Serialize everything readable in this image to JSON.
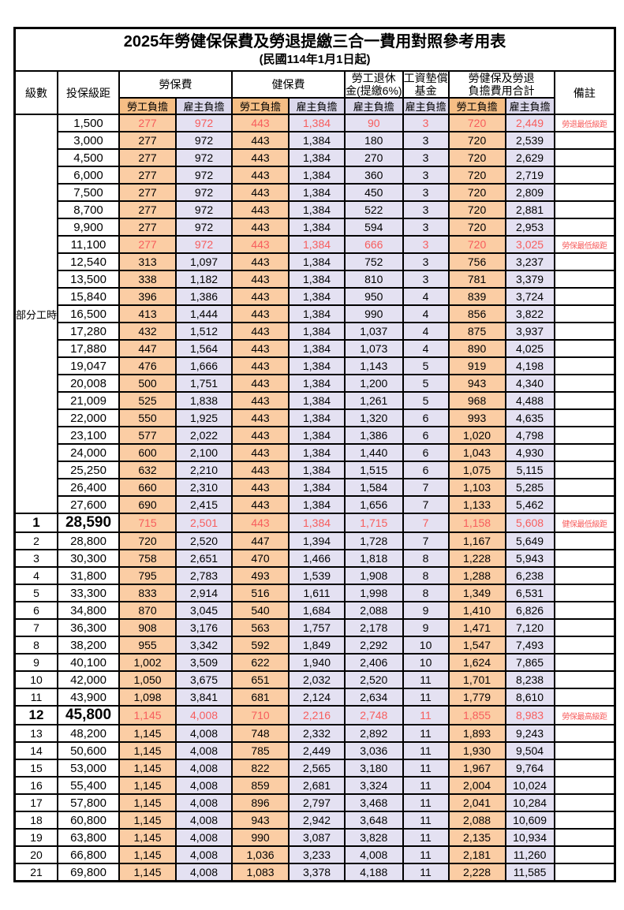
{
  "title": "2025年勞健保保費及勞退提繳三合一費用對照參考用表",
  "subtitle": "(民國114年1月1日起)",
  "header": {
    "level": "級數",
    "bracket": "投保級距",
    "labor_insurance": "勞保費",
    "health_insurance": "健保費",
    "pension_line1": "勞工退休",
    "pension_line2": "金(提繳6%)",
    "wage_fund_line1": "工資墊償",
    "wage_fund_line2": "基金",
    "total_line1": "勞健保及勞退",
    "total_line2": "負擔費用合計",
    "remark": "備註",
    "worker_burden": "勞工負擔",
    "employer_burden": "雇主負擔"
  },
  "part_time_label": "部分工時",
  "colors": {
    "worker_fill": "#FBCDA4",
    "employer_fill": "#E4E1F2",
    "header_worker_fill": "#F6BE85",
    "header_employer_fill": "#DBD8EC",
    "highlight_red": "#F75D5D",
    "border": "#000000"
  },
  "columns": [
    {
      "key": "a",
      "fill": "orange",
      "name": "cell-labor-insurance-worker"
    },
    {
      "key": "b",
      "fill": "lav",
      "name": "cell-labor-insurance-employer"
    },
    {
      "key": "c",
      "fill": "orange",
      "name": "cell-health-insurance-worker"
    },
    {
      "key": "d",
      "fill": "lav",
      "name": "cell-health-insurance-employer"
    },
    {
      "key": "e",
      "fill": "lav",
      "name": "cell-pension-employer"
    },
    {
      "key": "f",
      "fill": "lav",
      "name": "cell-wage-fund-employer"
    },
    {
      "key": "g",
      "fill": "orange",
      "name": "cell-total-worker"
    },
    {
      "key": "h",
      "fill": "lav",
      "name": "cell-total-employer"
    }
  ],
  "rows": [
    {
      "lv": "",
      "br": "1,500",
      "a": "277",
      "b": "972",
      "c": "443",
      "d": "1,384",
      "e": "90",
      "f": "3",
      "g": "720",
      "h": "2,449",
      "r": "勞退最低級距",
      "red": true,
      "big": false
    },
    {
      "lv": "",
      "br": "3,000",
      "a": "277",
      "b": "972",
      "c": "443",
      "d": "1,384",
      "e": "180",
      "f": "3",
      "g": "720",
      "h": "2,539",
      "r": "",
      "red": false,
      "big": false
    },
    {
      "lv": "",
      "br": "4,500",
      "a": "277",
      "b": "972",
      "c": "443",
      "d": "1,384",
      "e": "270",
      "f": "3",
      "g": "720",
      "h": "2,629",
      "r": "",
      "red": false,
      "big": false
    },
    {
      "lv": "",
      "br": "6,000",
      "a": "277",
      "b": "972",
      "c": "443",
      "d": "1,384",
      "e": "360",
      "f": "3",
      "g": "720",
      "h": "2,719",
      "r": "",
      "red": false,
      "big": false
    },
    {
      "lv": "",
      "br": "7,500",
      "a": "277",
      "b": "972",
      "c": "443",
      "d": "1,384",
      "e": "450",
      "f": "3",
      "g": "720",
      "h": "2,809",
      "r": "",
      "red": false,
      "big": false
    },
    {
      "lv": "",
      "br": "8,700",
      "a": "277",
      "b": "972",
      "c": "443",
      "d": "1,384",
      "e": "522",
      "f": "3",
      "g": "720",
      "h": "2,881",
      "r": "",
      "red": false,
      "big": false
    },
    {
      "lv": "",
      "br": "9,900",
      "a": "277",
      "b": "972",
      "c": "443",
      "d": "1,384",
      "e": "594",
      "f": "3",
      "g": "720",
      "h": "2,953",
      "r": "",
      "red": false,
      "big": false
    },
    {
      "lv": "",
      "br": "11,100",
      "a": "277",
      "b": "972",
      "c": "443",
      "d": "1,384",
      "e": "666",
      "f": "3",
      "g": "720",
      "h": "3,025",
      "r": "勞保最低級距",
      "red": true,
      "big": false
    },
    {
      "lv": "",
      "br": "12,540",
      "a": "313",
      "b": "1,097",
      "c": "443",
      "d": "1,384",
      "e": "752",
      "f": "3",
      "g": "756",
      "h": "3,237",
      "r": "",
      "red": false,
      "big": false
    },
    {
      "lv": "",
      "br": "13,500",
      "a": "338",
      "b": "1,182",
      "c": "443",
      "d": "1,384",
      "e": "810",
      "f": "3",
      "g": "781",
      "h": "3,379",
      "r": "",
      "red": false,
      "big": false
    },
    {
      "lv": "",
      "br": "15,840",
      "a": "396",
      "b": "1,386",
      "c": "443",
      "d": "1,384",
      "e": "950",
      "f": "4",
      "g": "839",
      "h": "3,724",
      "r": "",
      "red": false,
      "big": false
    },
    {
      "lv": "",
      "br": "16,500",
      "a": "413",
      "b": "1,444",
      "c": "443",
      "d": "1,384",
      "e": "990",
      "f": "4",
      "g": "856",
      "h": "3,822",
      "r": "",
      "red": false,
      "big": false
    },
    {
      "lv": "",
      "br": "17,280",
      "a": "432",
      "b": "1,512",
      "c": "443",
      "d": "1,384",
      "e": "1,037",
      "f": "4",
      "g": "875",
      "h": "3,937",
      "r": "",
      "red": false,
      "big": false
    },
    {
      "lv": "",
      "br": "17,880",
      "a": "447",
      "b": "1,564",
      "c": "443",
      "d": "1,384",
      "e": "1,073",
      "f": "4",
      "g": "890",
      "h": "4,025",
      "r": "",
      "red": false,
      "big": false
    },
    {
      "lv": "",
      "br": "19,047",
      "a": "476",
      "b": "1,666",
      "c": "443",
      "d": "1,384",
      "e": "1,143",
      "f": "5",
      "g": "919",
      "h": "4,198",
      "r": "",
      "red": false,
      "big": false
    },
    {
      "lv": "",
      "br": "20,008",
      "a": "500",
      "b": "1,751",
      "c": "443",
      "d": "1,384",
      "e": "1,200",
      "f": "5",
      "g": "943",
      "h": "4,340",
      "r": "",
      "red": false,
      "big": false
    },
    {
      "lv": "",
      "br": "21,009",
      "a": "525",
      "b": "1,838",
      "c": "443",
      "d": "1,384",
      "e": "1,261",
      "f": "5",
      "g": "968",
      "h": "4,488",
      "r": "",
      "red": false,
      "big": false
    },
    {
      "lv": "",
      "br": "22,000",
      "a": "550",
      "b": "1,925",
      "c": "443",
      "d": "1,384",
      "e": "1,320",
      "f": "6",
      "g": "993",
      "h": "4,635",
      "r": "",
      "red": false,
      "big": false
    },
    {
      "lv": "",
      "br": "23,100",
      "a": "577",
      "b": "2,022",
      "c": "443",
      "d": "1,384",
      "e": "1,386",
      "f": "6",
      "g": "1,020",
      "h": "4,798",
      "r": "",
      "red": false,
      "big": false
    },
    {
      "lv": "",
      "br": "24,000",
      "a": "600",
      "b": "2,100",
      "c": "443",
      "d": "1,384",
      "e": "1,440",
      "f": "6",
      "g": "1,043",
      "h": "4,930",
      "r": "",
      "red": false,
      "big": false
    },
    {
      "lv": "",
      "br": "25,250",
      "a": "632",
      "b": "2,210",
      "c": "443",
      "d": "1,384",
      "e": "1,515",
      "f": "6",
      "g": "1,075",
      "h": "5,115",
      "r": "",
      "red": false,
      "big": false
    },
    {
      "lv": "",
      "br": "26,400",
      "a": "660",
      "b": "2,310",
      "c": "443",
      "d": "1,384",
      "e": "1,584",
      "f": "7",
      "g": "1,103",
      "h": "5,285",
      "r": "",
      "red": false,
      "big": false
    },
    {
      "lv": "",
      "br": "27,600",
      "a": "690",
      "b": "2,415",
      "c": "443",
      "d": "1,384",
      "e": "1,656",
      "f": "7",
      "g": "1,133",
      "h": "5,462",
      "r": "",
      "red": false,
      "big": false
    },
    {
      "lv": "1",
      "br": "28,590",
      "a": "715",
      "b": "2,501",
      "c": "443",
      "d": "1,384",
      "e": "1,715",
      "f": "7",
      "g": "1,158",
      "h": "5,608",
      "r": "健保最低級距",
      "red": true,
      "big": true
    },
    {
      "lv": "2",
      "br": "28,800",
      "a": "720",
      "b": "2,520",
      "c": "447",
      "d": "1,394",
      "e": "1,728",
      "f": "7",
      "g": "1,167",
      "h": "5,649",
      "r": "",
      "red": false,
      "big": false
    },
    {
      "lv": "3",
      "br": "30,300",
      "a": "758",
      "b": "2,651",
      "c": "470",
      "d": "1,466",
      "e": "1,818",
      "f": "8",
      "g": "1,228",
      "h": "5,943",
      "r": "",
      "red": false,
      "big": false
    },
    {
      "lv": "4",
      "br": "31,800",
      "a": "795",
      "b": "2,783",
      "c": "493",
      "d": "1,539",
      "e": "1,908",
      "f": "8",
      "g": "1,288",
      "h": "6,238",
      "r": "",
      "red": false,
      "big": false
    },
    {
      "lv": "5",
      "br": "33,300",
      "a": "833",
      "b": "2,914",
      "c": "516",
      "d": "1,611",
      "e": "1,998",
      "f": "8",
      "g": "1,349",
      "h": "6,531",
      "r": "",
      "red": false,
      "big": false
    },
    {
      "lv": "6",
      "br": "34,800",
      "a": "870",
      "b": "3,045",
      "c": "540",
      "d": "1,684",
      "e": "2,088",
      "f": "9",
      "g": "1,410",
      "h": "6,826",
      "r": "",
      "red": false,
      "big": false
    },
    {
      "lv": "7",
      "br": "36,300",
      "a": "908",
      "b": "3,176",
      "c": "563",
      "d": "1,757",
      "e": "2,178",
      "f": "9",
      "g": "1,471",
      "h": "7,120",
      "r": "",
      "red": false,
      "big": false
    },
    {
      "lv": "8",
      "br": "38,200",
      "a": "955",
      "b": "3,342",
      "c": "592",
      "d": "1,849",
      "e": "2,292",
      "f": "10",
      "g": "1,547",
      "h": "7,493",
      "r": "",
      "red": false,
      "big": false
    },
    {
      "lv": "9",
      "br": "40,100",
      "a": "1,002",
      "b": "3,509",
      "c": "622",
      "d": "1,940",
      "e": "2,406",
      "f": "10",
      "g": "1,624",
      "h": "7,865",
      "r": "",
      "red": false,
      "big": false
    },
    {
      "lv": "10",
      "br": "42,000",
      "a": "1,050",
      "b": "3,675",
      "c": "651",
      "d": "2,032",
      "e": "2,520",
      "f": "11",
      "g": "1,701",
      "h": "8,238",
      "r": "",
      "red": false,
      "big": false
    },
    {
      "lv": "11",
      "br": "43,900",
      "a": "1,098",
      "b": "3,841",
      "c": "681",
      "d": "2,124",
      "e": "2,634",
      "f": "11",
      "g": "1,779",
      "h": "8,610",
      "r": "",
      "red": false,
      "big": false
    },
    {
      "lv": "12",
      "br": "45,800",
      "a": "1,145",
      "b": "4,008",
      "c": "710",
      "d": "2,216",
      "e": "2,748",
      "f": "11",
      "g": "1,855",
      "h": "8,983",
      "r": "勞保最高級距",
      "red": true,
      "big": true
    },
    {
      "lv": "13",
      "br": "48,200",
      "a": "1,145",
      "b": "4,008",
      "c": "748",
      "d": "2,332",
      "e": "2,892",
      "f": "11",
      "g": "1,893",
      "h": "9,243",
      "r": "",
      "red": false,
      "big": false
    },
    {
      "lv": "14",
      "br": "50,600",
      "a": "1,145",
      "b": "4,008",
      "c": "785",
      "d": "2,449",
      "e": "3,036",
      "f": "11",
      "g": "1,930",
      "h": "9,504",
      "r": "",
      "red": false,
      "big": false
    },
    {
      "lv": "15",
      "br": "53,000",
      "a": "1,145",
      "b": "4,008",
      "c": "822",
      "d": "2,565",
      "e": "3,180",
      "f": "11",
      "g": "1,967",
      "h": "9,764",
      "r": "",
      "red": false,
      "big": false
    },
    {
      "lv": "16",
      "br": "55,400",
      "a": "1,145",
      "b": "4,008",
      "c": "859",
      "d": "2,681",
      "e": "3,324",
      "f": "11",
      "g": "2,004",
      "h": "10,024",
      "r": "",
      "red": false,
      "big": false
    },
    {
      "lv": "17",
      "br": "57,800",
      "a": "1,145",
      "b": "4,008",
      "c": "896",
      "d": "2,797",
      "e": "3,468",
      "f": "11",
      "g": "2,041",
      "h": "10,284",
      "r": "",
      "red": false,
      "big": false
    },
    {
      "lv": "18",
      "br": "60,800",
      "a": "1,145",
      "b": "4,008",
      "c": "943",
      "d": "2,942",
      "e": "3,648",
      "f": "11",
      "g": "2,088",
      "h": "10,609",
      "r": "",
      "red": false,
      "big": false
    },
    {
      "lv": "19",
      "br": "63,800",
      "a": "1,145",
      "b": "4,008",
      "c": "990",
      "d": "3,087",
      "e": "3,828",
      "f": "11",
      "g": "2,135",
      "h": "10,934",
      "r": "",
      "red": false,
      "big": false
    },
    {
      "lv": "20",
      "br": "66,800",
      "a": "1,145",
      "b": "4,008",
      "c": "1,036",
      "d": "3,233",
      "e": "4,008",
      "f": "11",
      "g": "2,181",
      "h": "11,260",
      "r": "",
      "red": false,
      "big": false
    },
    {
      "lv": "21",
      "br": "69,800",
      "a": "1,145",
      "b": "4,008",
      "c": "1,083",
      "d": "3,378",
      "e": "4,188",
      "f": "11",
      "g": "2,228",
      "h": "11,585",
      "r": "",
      "red": false,
      "big": false
    }
  ]
}
